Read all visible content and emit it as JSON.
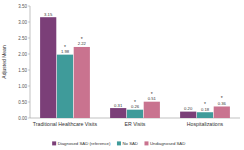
{
  "chart_data": {
    "type": "bar",
    "y_label": "Adjusted Mean",
    "categories": [
      "Traditional Healthcare Visits",
      "ER Visits",
      "Hospitalizations"
    ],
    "series": [
      {
        "name": "Diagnosed SAD (reference)",
        "color": "#7b3f78",
        "values": [
          3.15,
          0.31,
          0.2
        ],
        "value_labels": [
          "3.15",
          "0.31",
          "0.20"
        ]
      },
      {
        "name": "No SAD",
        "color": "#3f9b9a",
        "values": [
          1.98,
          0.26,
          0.18
        ],
        "value_labels": [
          "1.98",
          "0.26",
          "0.18"
        ],
        "annotation": "*"
      },
      {
        "name": "Undiagnosed SAD",
        "color": "#c9738f",
        "values": [
          2.22,
          0.51,
          0.36
        ],
        "value_labels": [
          "2.22",
          "0.51",
          "0.36"
        ],
        "annotation": "*"
      }
    ],
    "ylim": [
      0,
      3.5
    ],
    "yticks": [
      {
        "value": 0,
        "label": "0.00"
      },
      {
        "value": 0.5,
        "label": "0.50"
      },
      {
        "value": 1,
        "label": "1.00"
      },
      {
        "value": 1.5,
        "label": "1.50"
      },
      {
        "value": 2,
        "label": "2.00"
      },
      {
        "value": 2.5,
        "label": "2.50"
      },
      {
        "value": 3,
        "label": "3.00"
      },
      {
        "value": 3.5,
        "label": "3.50"
      }
    ],
    "grid": false,
    "data_labels": true,
    "legend": "bottom"
  }
}
